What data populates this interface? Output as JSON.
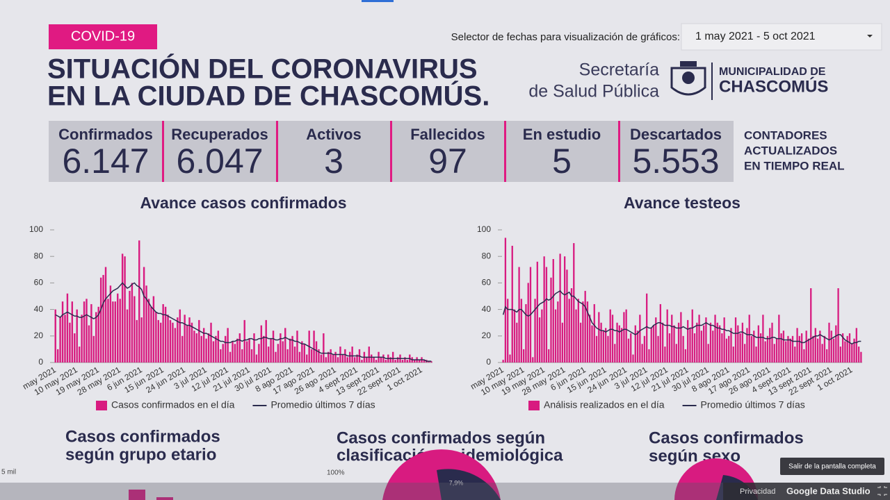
{
  "header": {
    "tag": "COVID-19",
    "title_line1": "SITUACIÓN DEL CORONAVIRUS",
    "title_line2": "EN LA CIUDAD DE CHASCOMÚS.",
    "date_selector_label": "Selector de fechas para visualización de gráficos:",
    "date_range": "1 may 2021 - 5 oct 2021",
    "logo_secretaria_1": "Secretaría",
    "logo_secretaria_2": "de Salud Pública",
    "logo_muni_1": "MUNICIPALIDAD DE",
    "logo_muni_2": "CHASCOMÚS"
  },
  "counters": [
    {
      "label": "Confirmados",
      "value": "6.147"
    },
    {
      "label": "Recuperados",
      "value": "6.047"
    },
    {
      "label": "Activos",
      "value": "3"
    },
    {
      "label": "Fallecidos",
      "value": "97"
    },
    {
      "label": "En estudio",
      "value": "5"
    },
    {
      "label": "Descartados",
      "value": "5.553"
    }
  ],
  "counters_note": [
    "CONTADORES",
    "ACTUALIZADOS",
    "EN TIEMPO REAL"
  ],
  "chart_data": [
    {
      "type": "bar",
      "title": "Avance casos confirmados",
      "ylim": [
        0,
        100
      ],
      "yticks": [
        0,
        20,
        40,
        60,
        80,
        100
      ],
      "categories": [
        "may 2021",
        null,
        null,
        null,
        null,
        null,
        null,
        null,
        null,
        "10 may 2021",
        null,
        null,
        null,
        null,
        null,
        null,
        null,
        null,
        "19 may 2021",
        null,
        null,
        null,
        null,
        null,
        null,
        null,
        null,
        "28 may 2021",
        null,
        null,
        null,
        null,
        null,
        null,
        null,
        null,
        "6 jun 2021",
        null,
        null,
        null,
        null,
        null,
        null,
        null,
        null,
        "15 jun 2021",
        null,
        null,
        null,
        null,
        null,
        null,
        null,
        null,
        "24 jun 2021",
        null,
        null,
        null,
        null,
        null,
        null,
        null,
        null,
        "3 jul 2021",
        null,
        null,
        null,
        null,
        null,
        null,
        null,
        null,
        "12 jul 2021",
        null,
        null,
        null,
        null,
        null,
        null,
        null,
        null,
        "21 jul 2021",
        null,
        null,
        null,
        null,
        null,
        null,
        null,
        null,
        "30 jul 2021",
        null,
        null,
        null,
        null,
        null,
        null,
        null,
        null,
        "8 ago 2021",
        null,
        null,
        null,
        null,
        null,
        null,
        null,
        null,
        "17 ago 2021",
        null,
        null,
        null,
        null,
        null,
        null,
        null,
        null,
        "26 ago 2021",
        null,
        null,
        null,
        null,
        null,
        null,
        null,
        null,
        "4 sept 2021",
        null,
        null,
        null,
        null,
        null,
        null,
        null,
        null,
        "13 sept 2021",
        null,
        null,
        null,
        null,
        null,
        null,
        null,
        null,
        "22 sept 2021",
        null,
        null,
        null,
        null,
        null,
        null,
        null,
        null,
        "1 oct 2021",
        null,
        null,
        null,
        null
      ],
      "series": [
        {
          "name": "Casos confirmados en el día",
          "type": "bar",
          "color": "#d81b80",
          "values": [
            40,
            10,
            34,
            46,
            36,
            52,
            30,
            46,
            22,
            40,
            12,
            36,
            46,
            48,
            28,
            44,
            20,
            38,
            42,
            64,
            66,
            72,
            48,
            58,
            46,
            46,
            52,
            48,
            82,
            80,
            40,
            54,
            60,
            50,
            32,
            92,
            34,
            72,
            58,
            48,
            42,
            50,
            38,
            32,
            30,
            44,
            42,
            36,
            32,
            30,
            26,
            34,
            40,
            20,
            36,
            28,
            34,
            30,
            24,
            22,
            32,
            20,
            26,
            18,
            22,
            30,
            16,
            20,
            24,
            10,
            14,
            20,
            26,
            8,
            16,
            14,
            18,
            22,
            10,
            32,
            16,
            18,
            10,
            22,
            6,
            14,
            28,
            20,
            32,
            12,
            18,
            24,
            8,
            14,
            22,
            16,
            26,
            10,
            18,
            20,
            12,
            24,
            8,
            16,
            14,
            6,
            24,
            10,
            24,
            16,
            10,
            6,
            22,
            4,
            8,
            10,
            6,
            8,
            4,
            12,
            6,
            10,
            4,
            8,
            12,
            4,
            6,
            10,
            2,
            8,
            4,
            12,
            6,
            4,
            2,
            8,
            4,
            6,
            2,
            6,
            4,
            8,
            2,
            4,
            6,
            2,
            4,
            2,
            6,
            4,
            2,
            4,
            2,
            4,
            2,
            2,
            1,
            1
          ]
        },
        {
          "name": "Promedio últimos 7 días",
          "type": "line",
          "color": "#2a2b4d",
          "values": [
            36,
            35,
            34,
            36,
            37,
            38,
            37,
            36,
            35,
            35,
            34,
            34,
            35,
            36,
            35,
            34,
            33,
            34,
            36,
            40,
            45,
            48,
            50,
            52,
            54,
            55,
            56,
            58,
            60,
            58,
            56,
            57,
            59,
            60,
            58,
            57,
            55,
            50,
            48,
            45,
            42,
            40,
            38,
            37,
            37,
            36,
            36,
            35,
            34,
            33,
            32,
            31,
            30,
            30,
            29,
            28,
            28,
            27,
            26,
            25,
            24,
            23,
            22,
            22,
            21,
            20,
            19,
            18,
            17,
            16,
            16,
            15,
            15,
            15,
            16,
            16,
            17,
            17,
            16,
            17,
            17,
            18,
            18,
            17,
            17,
            18,
            18,
            19,
            19,
            18,
            18,
            18,
            17,
            17,
            18,
            18,
            19,
            18,
            17,
            17,
            16,
            16,
            15,
            14,
            14,
            13,
            12,
            11,
            10,
            9,
            8,
            7,
            7,
            7,
            7,
            7,
            6,
            6,
            6,
            6,
            6,
            6,
            5,
            5,
            5,
            5,
            5,
            5,
            4,
            4,
            4,
            4,
            4,
            4,
            4,
            4,
            4,
            4,
            3,
            3,
            3,
            3,
            3,
            3,
            3,
            3,
            3,
            3,
            3,
            2,
            2,
            2,
            2,
            2,
            2,
            1,
            1,
            1
          ]
        }
      ]
    },
    {
      "type": "bar",
      "title": "Avance testeos",
      "ylim": [
        0,
        100
      ],
      "yticks": [
        0,
        20,
        40,
        60,
        80,
        100
      ],
      "categories": [
        "may 2021",
        null,
        null,
        null,
        null,
        null,
        null,
        null,
        null,
        "10 may 2021",
        null,
        null,
        null,
        null,
        null,
        null,
        null,
        null,
        "19 may 2021",
        null,
        null,
        null,
        null,
        null,
        null,
        null,
        null,
        "28 may 2021",
        null,
        null,
        null,
        null,
        null,
        null,
        null,
        null,
        "6 jun 2021",
        null,
        null,
        null,
        null,
        null,
        null,
        null,
        null,
        "15 jun 2021",
        null,
        null,
        null,
        null,
        null,
        null,
        null,
        null,
        "24 jun 2021",
        null,
        null,
        null,
        null,
        null,
        null,
        null,
        null,
        "3 jul 2021",
        null,
        null,
        null,
        null,
        null,
        null,
        null,
        null,
        "12 jul 2021",
        null,
        null,
        null,
        null,
        null,
        null,
        null,
        null,
        "21 jul 2021",
        null,
        null,
        null,
        null,
        null,
        null,
        null,
        null,
        "30 jul 2021",
        null,
        null,
        null,
        null,
        null,
        null,
        null,
        null,
        "8 ago 2021",
        null,
        null,
        null,
        null,
        null,
        null,
        null,
        null,
        "17 ago 2021",
        null,
        null,
        null,
        null,
        null,
        null,
        null,
        null,
        "26 ago 2021",
        null,
        null,
        null,
        null,
        null,
        null,
        null,
        null,
        "4 sept 2021",
        null,
        null,
        null,
        null,
        null,
        null,
        null,
        null,
        "13 sept 2021",
        null,
        null,
        null,
        null,
        null,
        null,
        null,
        null,
        "22 sept 2021",
        null,
        null,
        null,
        null,
        null,
        null,
        null,
        null,
        "1 oct 2021",
        null,
        null,
        null,
        null
      ],
      "series": [
        {
          "name": "Análisis realizados en el día",
          "type": "bar",
          "color": "#d81b80",
          "values": [
            2,
            94,
            48,
            6,
            88,
            40,
            30,
            72,
            48,
            10,
            44,
            60,
            72,
            4,
            48,
            76,
            34,
            40,
            80,
            72,
            10,
            64,
            78,
            40,
            46,
            82,
            30,
            80,
            70,
            48,
            56,
            90,
            40,
            48,
            30,
            46,
            54,
            46,
            36,
            28,
            44,
            20,
            38,
            30,
            24,
            26,
            20,
            40,
            36,
            14,
            30,
            28,
            26,
            38,
            40,
            18,
            22,
            6,
            28,
            24,
            36,
            14,
            20,
            52,
            10,
            26,
            28,
            34,
            20,
            44,
            30,
            12,
            40,
            22,
            36,
            28,
            14,
            30,
            38,
            20,
            10,
            32,
            26,
            40,
            22,
            30,
            36,
            24,
            28,
            34,
            14,
            30,
            24,
            36,
            30,
            28,
            22,
            34,
            18,
            20,
            26,
            12,
            34,
            28,
            22,
            30,
            14,
            26,
            36,
            20,
            24,
            12,
            28,
            22,
            36,
            16,
            20,
            26,
            30,
            14,
            18,
            36,
            22,
            24,
            16,
            20,
            18,
            20,
            12,
            26,
            20,
            22,
            10,
            24,
            18,
            56,
            20,
            26,
            18,
            24,
            14,
            20,
            10,
            30,
            24,
            18,
            28,
            56,
            12,
            22,
            16,
            20,
            22,
            14,
            18,
            26,
            12,
            8
          ]
        },
        {
          "name": "Promedio últimos 7 días",
          "type": "line",
          "color": "#2a2b4d",
          "values": [
            36,
            42,
            40,
            40,
            40,
            39,
            38,
            40,
            40,
            38,
            36,
            35,
            36,
            38,
            40,
            42,
            44,
            45,
            46,
            48,
            47,
            48,
            50,
            52,
            53,
            54,
            52,
            51,
            52,
            53,
            50,
            50,
            48,
            46,
            45,
            44,
            42,
            38,
            34,
            30,
            28,
            26,
            25,
            24,
            24,
            23,
            24,
            25,
            25,
            24,
            24,
            23,
            24,
            25,
            25,
            24,
            23,
            22,
            21,
            22,
            24,
            25,
            26,
            27,
            26,
            26,
            28,
            29,
            30,
            30,
            29,
            28,
            28,
            28,
            27,
            27,
            26,
            26,
            26,
            27,
            26,
            25,
            26,
            26,
            27,
            28,
            28,
            28,
            29,
            30,
            29,
            28,
            28,
            27,
            26,
            26,
            25,
            25,
            24,
            24,
            23,
            22,
            22,
            22,
            23,
            23,
            22,
            21,
            21,
            21,
            20,
            19,
            19,
            19,
            19,
            18,
            18,
            18,
            19,
            19,
            18,
            18,
            18,
            17,
            17,
            17,
            17,
            16,
            16,
            16,
            16,
            15,
            15,
            16,
            17,
            18,
            19,
            20,
            20,
            21,
            20,
            19,
            18,
            17,
            18,
            19,
            20,
            21,
            21,
            19,
            17,
            16,
            15,
            14,
            15,
            15,
            16,
            16
          ]
        }
      ]
    }
  ],
  "sections": [
    {
      "title_line1": "Casos confirmados",
      "title_line2": "según grupo etario",
      "axis_label": "5 mil"
    },
    {
      "title_line1": "Casos confirmados según",
      "title_line2": "clasificación epidemiológica",
      "axis_label": "100%",
      "slice_label": "7,9%"
    },
    {
      "title_line1": "Casos confirmados",
      "title_line2": "según sexo"
    }
  ],
  "footer": {
    "privacy": "Privacidad",
    "brand": "Google Data Studio",
    "tooltip": "Salir de la pantalla completa"
  }
}
